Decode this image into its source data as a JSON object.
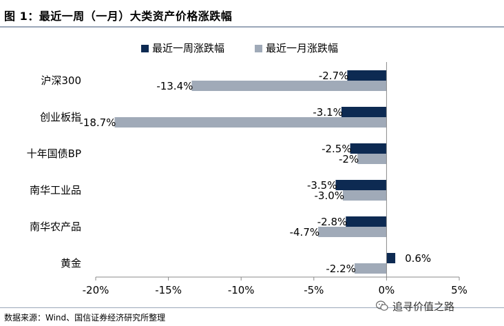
{
  "header": {
    "title": "图 1：最近一周（一月）大类资产价格涨跌幅"
  },
  "footer": {
    "source": "数据来源：Wind、国信证券经济研究所整理",
    "watermark": "追寻价值之路",
    "watermark_icon": "wechat-icon"
  },
  "chart_data": {
    "type": "bar",
    "orientation": "horizontal",
    "categories": [
      "沪深300",
      "创业板指",
      "十年国债BP",
      "南华工业品",
      "南华农产品",
      "黄金"
    ],
    "series": [
      {
        "name": "最近一周涨跌幅",
        "color": "#0d2a52",
        "values": [
          -2.7,
          -3.1,
          -2.5,
          -3.5,
          -2.8,
          0.6
        ],
        "labels": [
          "-2.7%",
          "-3.1%",
          "-2.5%",
          "-3.5%",
          "-2.8%",
          "0.6%"
        ]
      },
      {
        "name": "最近一月涨跌幅",
        "color": "#a0aab8",
        "values": [
          -13.4,
          -18.7,
          -2.0,
          -3.0,
          -4.7,
          -2.2
        ],
        "labels": [
          "-13.4%",
          "-18.7%",
          "-2%",
          "-3.0%",
          "-4.7%",
          "-2.2%"
        ]
      }
    ],
    "xlim": [
      -20,
      5
    ],
    "xticks": [
      -20,
      -15,
      -10,
      -5,
      0,
      5
    ],
    "xtick_labels": [
      "-20%",
      "-15%",
      "-10%",
      "-5%",
      "0%",
      "5%"
    ],
    "grid": false,
    "legend_position": "top"
  }
}
